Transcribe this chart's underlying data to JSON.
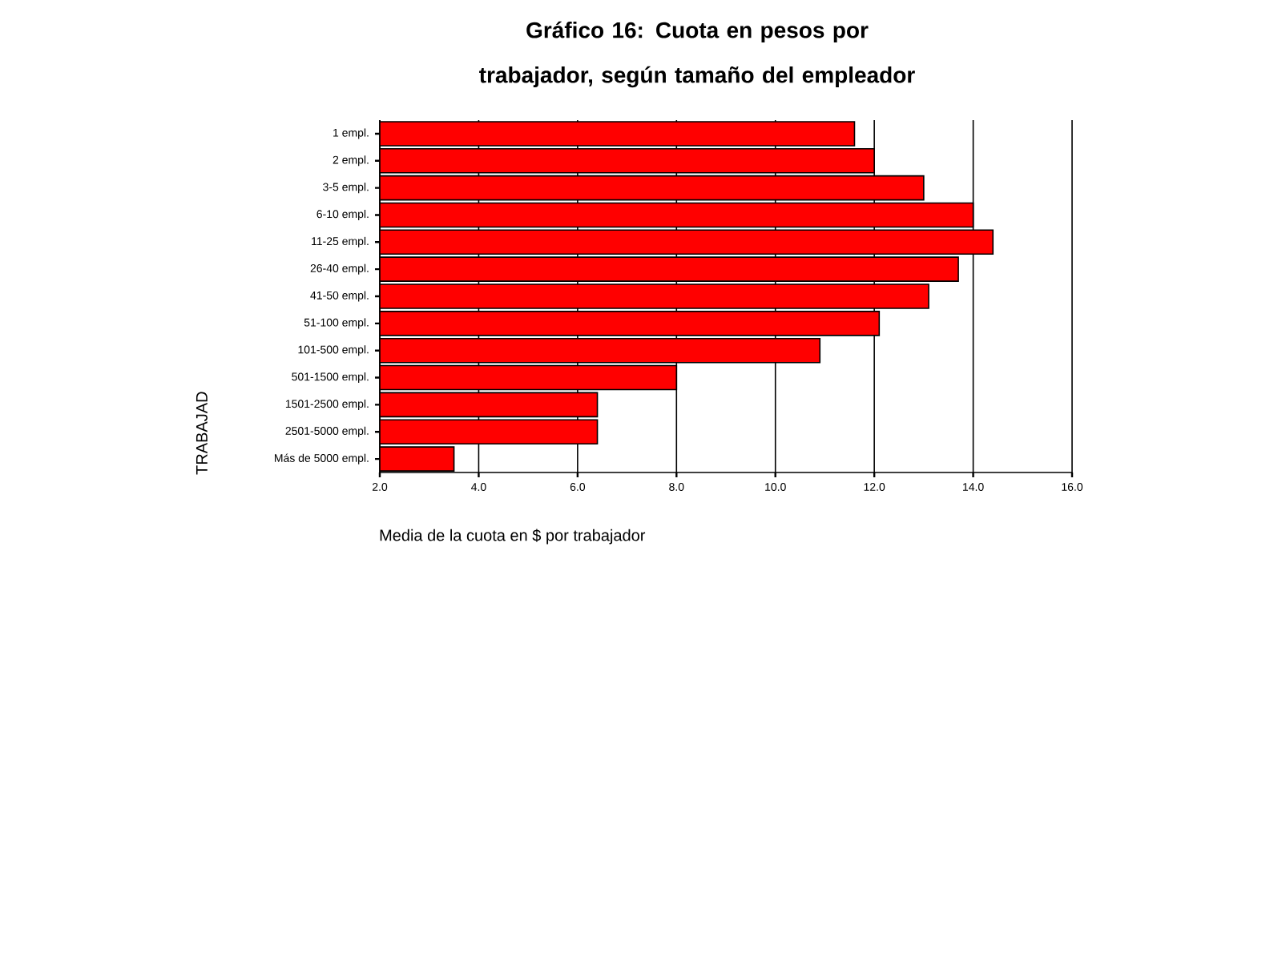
{
  "chart_data": {
    "type": "bar",
    "orientation": "horizontal",
    "title": "Gráfico 16: Cuota en pesos por trabajador, según tamaño del empleador",
    "xlabel": "Media de la cuota en $ por trabajador",
    "ylabel": "TRABAJAD",
    "categories": [
      "1 empl.",
      "2 empl.",
      "3-5 empl.",
      "6-10 empl.",
      "11-25 empl.",
      "26-40 empl.",
      "41-50 empl.",
      "51-100 empl.",
      "101-500 empl.",
      "501-1500 empl.",
      "1501-2500 empl.",
      "2501-5000 empl.",
      "Más de 5000 empl."
    ],
    "values": [
      11.6,
      12.0,
      13.0,
      14.0,
      14.4,
      13.7,
      13.1,
      12.1,
      10.9,
      8.0,
      6.4,
      6.4,
      3.5
    ],
    "color": "#ff0000",
    "xlim": [
      2,
      16
    ],
    "xticks": [
      {
        "value": 2,
        "label": "2.0"
      },
      {
        "value": 4,
        "label": "4.0"
      },
      {
        "value": 6,
        "label": "6.0"
      },
      {
        "value": 8,
        "label": "8.0"
      },
      {
        "value": 10,
        "label": "10.0"
      },
      {
        "value": 12,
        "label": "12.0"
      },
      {
        "value": 14,
        "label": "14.0"
      },
      {
        "value": 16,
        "label": "16.0"
      }
    ],
    "grid": "x"
  }
}
